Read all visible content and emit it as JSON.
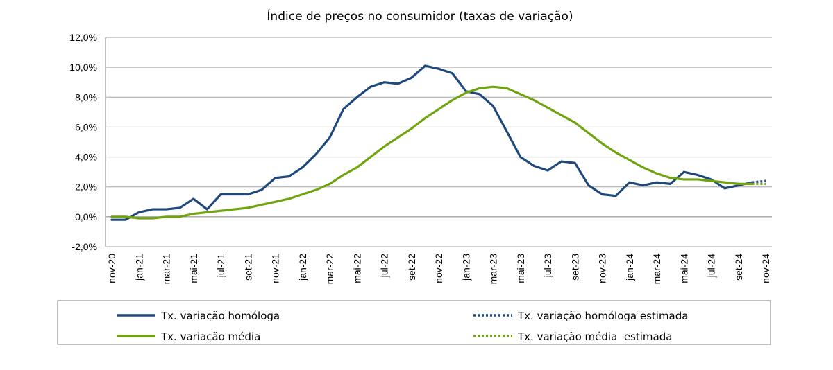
{
  "chart_data": {
    "type": "line",
    "title": "Índice de preços no consumidor  (taxas  de variação)",
    "xlabel": "",
    "ylabel": "",
    "ylim": [
      -2.0,
      12.0
    ],
    "y_ticks": [
      "-2,0%",
      "0,0%",
      "2,0%",
      "4,0%",
      "6,0%",
      "8,0%",
      "10,0%",
      "12,0%"
    ],
    "y_tick_values": [
      -2,
      0,
      2,
      4,
      6,
      8,
      10,
      12
    ],
    "x_tick_labels": [
      "nov-20",
      "jan-21",
      "mar-21",
      "mai-21",
      "jul-21",
      "set-21",
      "nov-21",
      "jan-22",
      "mar-22",
      "mai-22",
      "jul-22",
      "set-22",
      "nov-22",
      "jan-23",
      "mar-23",
      "mai-23",
      "jul-23",
      "set-23",
      "nov-23",
      "jan-24",
      "mar-24",
      "mai-24",
      "jul-24",
      "set-24",
      "nov-24"
    ],
    "months": [
      "nov-20",
      "dez-20",
      "jan-21",
      "fev-21",
      "mar-21",
      "abr-21",
      "mai-21",
      "jun-21",
      "jul-21",
      "ago-21",
      "set-21",
      "out-21",
      "nov-21",
      "dez-21",
      "jan-22",
      "fev-22",
      "mar-22",
      "abr-22",
      "mai-22",
      "jun-22",
      "jul-22",
      "ago-22",
      "set-22",
      "out-22",
      "nov-22",
      "dez-22",
      "jan-23",
      "fev-23",
      "mar-23",
      "abr-23",
      "mai-23",
      "jun-23",
      "jul-23",
      "ago-23",
      "set-23",
      "out-23",
      "nov-23",
      "dez-23",
      "jan-24",
      "fev-24",
      "mar-24",
      "abr-24",
      "mai-24",
      "jun-24",
      "jul-24",
      "ago-24",
      "set-24",
      "out-24",
      "nov-24"
    ],
    "grid": true,
    "legend_position": "bottom",
    "series": [
      {
        "name": "Tx. variação homóloga",
        "color": "#1f497d",
        "style": "solid",
        "values": [
          -0.2,
          -0.2,
          0.3,
          0.5,
          0.5,
          0.6,
          1.2,
          0.5,
          1.5,
          1.5,
          1.5,
          1.8,
          2.6,
          2.7,
          3.3,
          4.2,
          5.3,
          7.2,
          8.0,
          8.7,
          9.0,
          8.9,
          9.3,
          10.1,
          9.9,
          9.6,
          8.4,
          8.2,
          7.4,
          5.7,
          4.0,
          3.4,
          3.1,
          3.7,
          3.6,
          2.1,
          1.5,
          1.4,
          2.3,
          2.1,
          2.3,
          2.2,
          3.0,
          2.8,
          2.5,
          1.9,
          2.1,
          2.3,
          null
        ]
      },
      {
        "name": "Tx. variação homóloga estimada",
        "color": "#1f497d",
        "style": "dotted",
        "values": [
          null,
          null,
          null,
          null,
          null,
          null,
          null,
          null,
          null,
          null,
          null,
          null,
          null,
          null,
          null,
          null,
          null,
          null,
          null,
          null,
          null,
          null,
          null,
          null,
          null,
          null,
          null,
          null,
          null,
          null,
          null,
          null,
          null,
          null,
          null,
          null,
          null,
          null,
          null,
          null,
          null,
          null,
          null,
          null,
          null,
          null,
          null,
          2.3,
          2.4
        ]
      },
      {
        "name": "Tx. variação média",
        "color": "#6fa40f",
        "style": "solid",
        "values": [
          0.0,
          0.0,
          -0.1,
          -0.1,
          0.0,
          0.0,
          0.2,
          0.3,
          0.4,
          0.5,
          0.6,
          0.8,
          1.0,
          1.2,
          1.5,
          1.8,
          2.2,
          2.8,
          3.3,
          4.0,
          4.7,
          5.3,
          5.9,
          6.6,
          7.2,
          7.8,
          8.3,
          8.6,
          8.7,
          8.6,
          8.2,
          7.8,
          7.3,
          6.8,
          6.3,
          5.6,
          4.9,
          4.3,
          3.8,
          3.3,
          2.9,
          2.6,
          2.5,
          2.5,
          2.4,
          2.3,
          2.2,
          2.2,
          null
        ]
      },
      {
        "name": "Tx. variação média  estimada",
        "color": "#6fa40f",
        "style": "dotted",
        "values": [
          null,
          null,
          null,
          null,
          null,
          null,
          null,
          null,
          null,
          null,
          null,
          null,
          null,
          null,
          null,
          null,
          null,
          null,
          null,
          null,
          null,
          null,
          null,
          null,
          null,
          null,
          null,
          null,
          null,
          null,
          null,
          null,
          null,
          null,
          null,
          null,
          null,
          null,
          null,
          null,
          null,
          null,
          null,
          null,
          null,
          null,
          null,
          2.2,
          2.2
        ]
      }
    ]
  }
}
